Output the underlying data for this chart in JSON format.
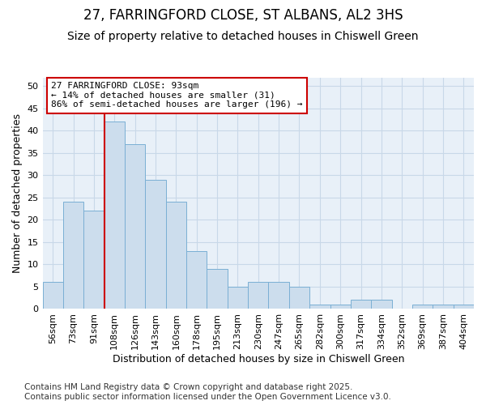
{
  "title1": "27, FARRINGFORD CLOSE, ST ALBANS, AL2 3HS",
  "title2": "Size of property relative to detached houses in Chiswell Green",
  "xlabel": "Distribution of detached houses by size in Chiswell Green",
  "ylabel": "Number of detached properties",
  "categories": [
    "56sqm",
    "73sqm",
    "91sqm",
    "108sqm",
    "126sqm",
    "143sqm",
    "160sqm",
    "178sqm",
    "195sqm",
    "213sqm",
    "230sqm",
    "247sqm",
    "265sqm",
    "282sqm",
    "300sqm",
    "317sqm",
    "334sqm",
    "352sqm",
    "369sqm",
    "387sqm",
    "404sqm"
  ],
  "values": [
    6,
    24,
    22,
    42,
    37,
    29,
    24,
    13,
    9,
    5,
    6,
    6,
    5,
    1,
    1,
    2,
    2,
    0,
    1,
    1,
    1
  ],
  "bar_color": "#ccdded",
  "bar_edge_color": "#7aafd4",
  "vline_index": 2,
  "vline_color": "#cc0000",
  "annotation_text": "27 FARRINGFORD CLOSE: 93sqm\n← 14% of detached houses are smaller (31)\n86% of semi-detached houses are larger (196) →",
  "annotation_box_facecolor": "#ffffff",
  "annotation_box_edgecolor": "#cc0000",
  "ylim": [
    0,
    52
  ],
  "yticks": [
    0,
    5,
    10,
    15,
    20,
    25,
    30,
    35,
    40,
    45,
    50
  ],
  "outer_bg_color": "#ffffff",
  "plot_bg_color": "#e8f0f8",
  "grid_color": "#c8d8e8",
  "footer": "Contains HM Land Registry data © Crown copyright and database right 2025.\nContains public sector information licensed under the Open Government Licence v3.0.",
  "title1_fontsize": 12,
  "title2_fontsize": 10,
  "label_fontsize": 9,
  "tick_fontsize": 8,
  "annot_fontsize": 8,
  "footer_fontsize": 7.5
}
